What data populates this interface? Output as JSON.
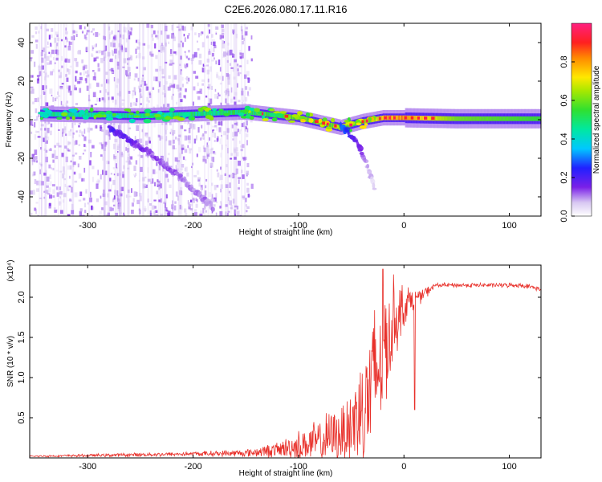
{
  "title": "C2E6.2026.080.17.11.R16",
  "colors": {
    "snr_line": "#e8302a",
    "frame": "#000000"
  },
  "chart_data": [
    {
      "type": "heatmap",
      "name": "spectrogram",
      "title": "C2E6.2026.080.17.11.R16",
      "xlabel": "Height of straight line (km)",
      "ylabel": "Frequency (Hz)",
      "xlim": [
        -355,
        130
      ],
      "ylim": [
        -50,
        50
      ],
      "xticks": [
        -300,
        -200,
        -100,
        0,
        100
      ],
      "yticks": [
        -40,
        -20,
        0,
        20,
        40
      ],
      "colorbar": {
        "label": "Normalized spectral amplitude",
        "range": [
          0.0,
          1.0
        ],
        "ticks": [
          0.0,
          0.2,
          0.4,
          0.6,
          0.8
        ]
      },
      "features": [
        {
          "name": "carrier-track",
          "x": [
            -345,
            -250,
            -150,
            -100,
            -60,
            -40,
            -20,
            0,
            50,
            130
          ],
          "y": [
            3,
            2,
            4,
            1,
            -4,
            -1,
            1,
            1,
            0.5,
            0.5
          ],
          "amplitude": [
            0.45,
            0.45,
            0.5,
            0.6,
            0.6,
            0.55,
            0.75,
            0.8,
            0.6,
            0.55
          ]
        },
        {
          "name": "diagonal-branch",
          "x": [
            -280,
            -250,
            -220,
            -200,
            -180
          ],
          "y": [
            -4,
            -14,
            -26,
            -36,
            -46
          ],
          "amplitude": [
            0.2,
            0.15,
            0.12,
            0.1,
            0.1
          ]
        },
        {
          "name": "lower-dip",
          "x": [
            -60,
            -50,
            -42,
            -35,
            -28
          ],
          "y": [
            -3,
            -8,
            -14,
            -24,
            -35
          ],
          "amplitude": [
            0.3,
            0.2,
            0.15,
            0.08,
            0.05
          ]
        }
      ]
    },
    {
      "type": "line",
      "name": "snr",
      "xlabel": "Height of straight line (km)",
      "ylabel": "SNR (10 * v/v)",
      "y_multiplier": "(x10⁴)",
      "xlim": [
        -355,
        130
      ],
      "ylim": [
        0,
        2.4
      ],
      "xticks": [
        -300,
        -200,
        -100,
        0,
        100
      ],
      "yticks": [
        0.5,
        1.0,
        1.5,
        2.0
      ],
      "series": [
        {
          "name": "SNR",
          "x": [
            -355,
            -300,
            -200,
            -150,
            -120,
            -100,
            -80,
            -60,
            -50,
            -45,
            -40,
            -35,
            -30,
            -25,
            -20,
            -15,
            -10,
            -5,
            0,
            5,
            10,
            15,
            20,
            25,
            30,
            40,
            60,
            80,
            100,
            110,
            120,
            130
          ],
          "y": [
            0.02,
            0.03,
            0.05,
            0.06,
            0.1,
            0.15,
            0.2,
            0.3,
            0.4,
            0.5,
            0.6,
            0.75,
            0.9,
            1.1,
            1.3,
            1.5,
            1.7,
            1.8,
            1.9,
            1.95,
            2.0,
            2.0,
            2.05,
            2.1,
            2.15,
            2.15,
            2.15,
            2.15,
            2.15,
            2.15,
            2.13,
            2.1
          ],
          "spread": [
            0.01,
            0.02,
            0.03,
            0.05,
            0.1,
            0.2,
            0.3,
            0.4,
            0.6,
            0.8,
            0.9,
            1.0,
            1.1,
            1.0,
            0.9,
            0.8,
            0.6,
            0.4,
            0.3,
            0.2,
            0.15,
            0.1,
            0.08,
            0.05,
            0.03,
            0.03,
            0.03,
            0.03,
            0.03,
            0.03,
            0.03,
            0.03
          ],
          "peak": {
            "x": -20,
            "y": 2.35
          }
        }
      ]
    }
  ]
}
